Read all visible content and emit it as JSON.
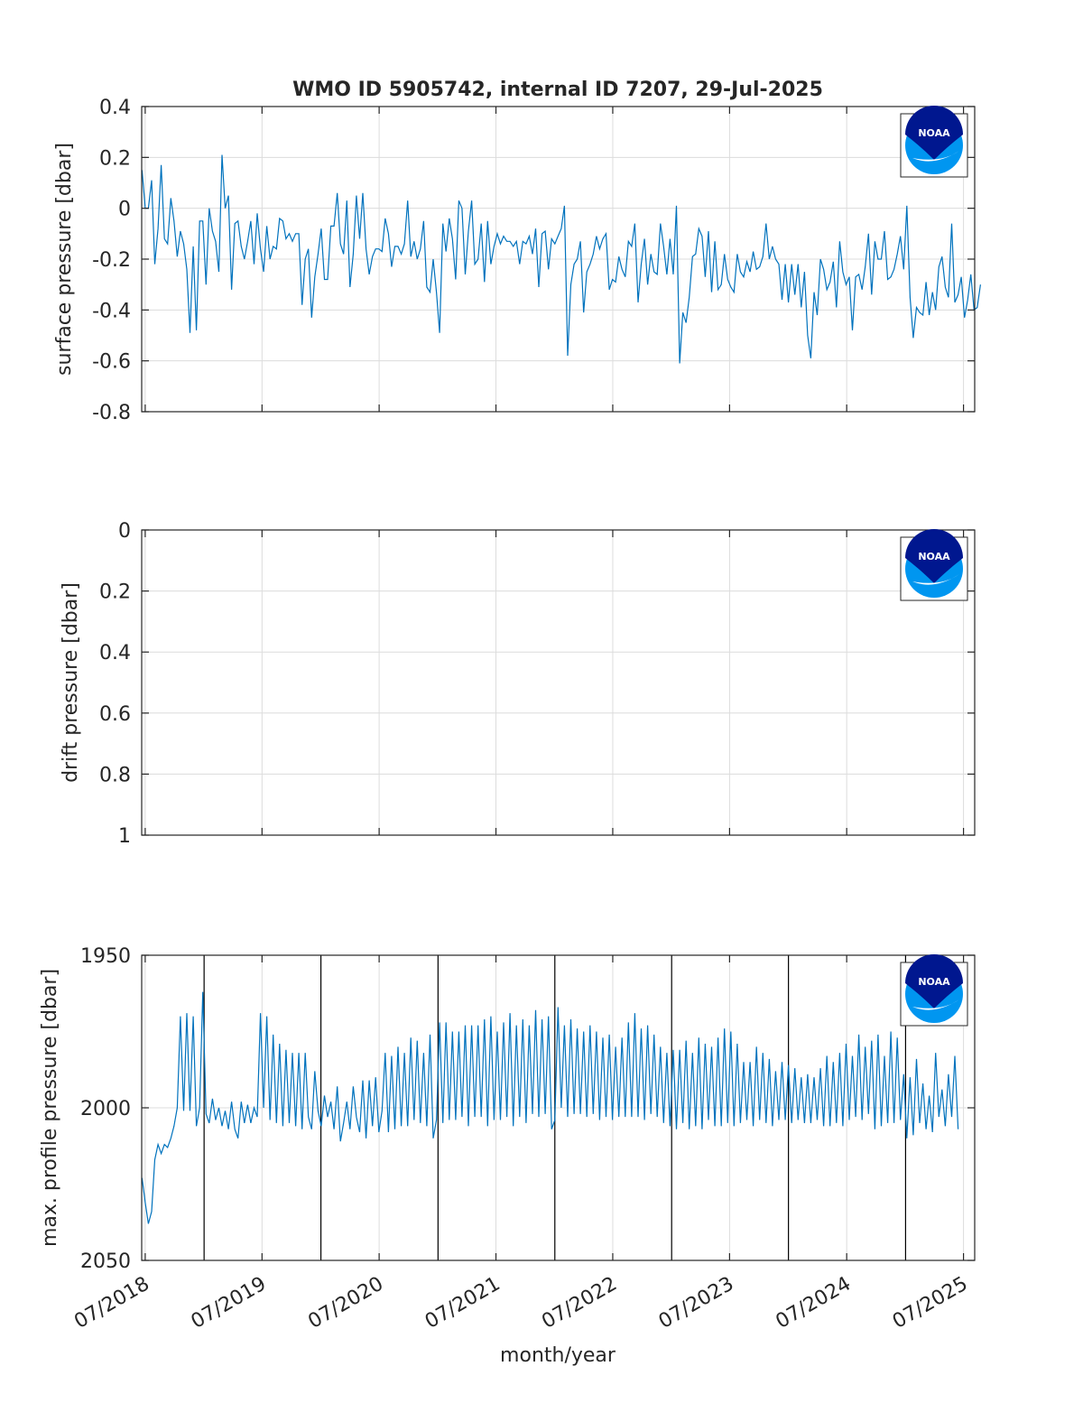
{
  "title": "WMO ID 5905742, internal ID 7207, 29-Jul-2025",
  "xlabel": "month/year",
  "x_tick_labels": [
    "07/2018",
    "07/2019",
    "07/2020",
    "07/2021",
    "07/2022",
    "07/2023",
    "07/2024",
    "07/2025"
  ],
  "logo": {
    "text": "NOAA",
    "dark_blue": "#00178f",
    "light_blue": "#0096f0"
  },
  "colors": {
    "series": "#0072bd",
    "grid": "#dcdcdc",
    "axes": "#262626"
  },
  "chart_data": [
    {
      "type": "line",
      "ylabel": "surface pressure [dbar]",
      "xlim": [
        "2018-06-20",
        "2025-08-05"
      ],
      "ylim": [
        -0.8,
        0.4
      ],
      "y_reversed": false,
      "y_ticks": [
        0.4,
        0.2,
        0,
        -0.2,
        -0.4,
        -0.6,
        -0.8
      ],
      "y_tick_labels": [
        "0.4",
        "0.2",
        "0",
        "-0.2",
        "-0.4",
        "-0.6",
        "-0.8"
      ],
      "grid": true,
      "series": [
        {
          "x_start": "2018-06-21",
          "x_step_days": 10,
          "values": [
            0.15,
            0.0,
            0.0,
            0.11,
            -0.22,
            -0.08,
            0.17,
            -0.12,
            -0.14,
            0.04,
            -0.05,
            -0.19,
            -0.09,
            -0.14,
            -0.24,
            -0.49,
            -0.15,
            -0.48,
            -0.05,
            -0.05,
            -0.3,
            0.0,
            -0.09,
            -0.13,
            -0.25,
            0.21,
            0.0,
            0.05,
            -0.32,
            -0.06,
            -0.05,
            -0.15,
            -0.2,
            -0.13,
            -0.05,
            -0.22,
            -0.02,
            -0.16,
            -0.25,
            -0.07,
            -0.2,
            -0.15,
            -0.16,
            -0.04,
            -0.05,
            -0.12,
            -0.1,
            -0.13,
            -0.1,
            -0.1,
            -0.38,
            -0.2,
            -0.16,
            -0.43,
            -0.27,
            -0.18,
            -0.08,
            -0.28,
            -0.28,
            -0.07,
            -0.07,
            0.06,
            -0.14,
            -0.18,
            0.03,
            -0.31,
            -0.18,
            0.05,
            -0.12,
            0.06,
            -0.16,
            -0.26,
            -0.19,
            -0.16,
            -0.16,
            -0.17,
            -0.04,
            -0.1,
            -0.23,
            -0.15,
            -0.15,
            -0.18,
            -0.14,
            0.03,
            -0.19,
            -0.13,
            -0.2,
            -0.16,
            -0.05,
            -0.31,
            -0.33,
            -0.2,
            -0.33,
            -0.49,
            -0.06,
            -0.17,
            -0.04,
            -0.12,
            -0.28,
            0.03,
            0.0,
            -0.26,
            -0.09,
            0.03,
            -0.22,
            -0.2,
            -0.06,
            -0.29,
            -0.05,
            -0.22,
            -0.15,
            -0.1,
            -0.14,
            -0.11,
            -0.13,
            -0.13,
            -0.15,
            -0.13,
            -0.22,
            -0.13,
            -0.14,
            -0.11,
            -0.18,
            -0.08,
            -0.31,
            -0.1,
            -0.09,
            -0.24,
            -0.12,
            -0.14,
            -0.11,
            -0.08,
            0.01,
            -0.58,
            -0.3,
            -0.22,
            -0.2,
            -0.13,
            -0.41,
            -0.25,
            -0.22,
            -0.18,
            -0.11,
            -0.16,
            -0.12,
            -0.1,
            -0.32,
            -0.28,
            -0.29,
            -0.19,
            -0.24,
            -0.27,
            -0.13,
            -0.15,
            -0.06,
            -0.37,
            -0.22,
            -0.12,
            -0.3,
            -0.18,
            -0.25,
            -0.26,
            -0.06,
            -0.15,
            -0.26,
            -0.12,
            -0.26,
            0.01,
            -0.61,
            -0.41,
            -0.45,
            -0.35,
            -0.19,
            -0.18,
            -0.08,
            -0.11,
            -0.27,
            -0.09,
            -0.33,
            -0.13,
            -0.32,
            -0.3,
            -0.18,
            -0.28,
            -0.31,
            -0.33,
            -0.18,
            -0.25,
            -0.27,
            -0.21,
            -0.25,
            -0.17,
            -0.24,
            -0.23,
            -0.19,
            -0.06,
            -0.2,
            -0.15,
            -0.2,
            -0.22,
            -0.36,
            -0.22,
            -0.37,
            -0.22,
            -0.34,
            -0.22,
            -0.39,
            -0.25,
            -0.5,
            -0.59,
            -0.33,
            -0.42,
            -0.2,
            -0.24,
            -0.32,
            -0.29,
            -0.21,
            -0.39,
            -0.13,
            -0.25,
            -0.3,
            -0.27,
            -0.48,
            -0.27,
            -0.26,
            -0.32,
            -0.23,
            -0.1,
            -0.34,
            -0.13,
            -0.2,
            -0.2,
            -0.09,
            -0.28,
            -0.27,
            -0.24,
            -0.18,
            -0.11,
            -0.24,
            0.01,
            -0.35,
            -0.51,
            -0.39,
            -0.41,
            -0.42,
            -0.29,
            -0.42,
            -0.33,
            -0.4,
            -0.23,
            -0.19,
            -0.31,
            -0.35,
            -0.06,
            -0.37,
            -0.34,
            -0.27,
            -0.43,
            -0.36,
            -0.26,
            -0.4,
            -0.39,
            -0.3
          ]
        }
      ],
      "logo_position": "top-right"
    },
    {
      "type": "line",
      "ylabel": "drift pressure [dbar]",
      "xlim": [
        "2018-06-20",
        "2025-08-05"
      ],
      "ylim": [
        0,
        1
      ],
      "y_reversed": true,
      "y_ticks": [
        0,
        0.2,
        0.4,
        0.6,
        0.8,
        1
      ],
      "y_tick_labels": [
        "0",
        "0.2",
        "0.4",
        "0.6",
        "0.8",
        "1"
      ],
      "grid": true,
      "series": [],
      "logo_position": "top-right"
    },
    {
      "type": "line",
      "ylabel": "max. profile pressure [dbar]",
      "xlim": [
        "2018-06-20",
        "2025-08-05"
      ],
      "ylim": [
        1950,
        2050
      ],
      "y_reversed": true,
      "y_ticks": [
        1950,
        2000,
        2050
      ],
      "y_tick_labels": [
        "1950",
        "2000",
        "2050"
      ],
      "grid": true,
      "vertical_lines_x": [
        "2019-01-01",
        "2020-01-01",
        "2021-01-01",
        "2022-01-01",
        "2023-01-01",
        "2024-01-01",
        "2025-01-01"
      ],
      "series": [
        {
          "x_start": "2018-06-21",
          "x_step_days": 10,
          "values": [
            2023,
            2031,
            2038,
            2034,
            2017,
            2012,
            2015,
            2012,
            2013,
            2010,
            2006,
            2000,
            1970,
            2001,
            1969,
            2001,
            1970,
            2006,
            2000,
            1962,
            2002,
            2005,
            1997,
            2004,
            2000,
            2006,
            2001,
            2007,
            1998,
            2007,
            2010,
            1998,
            2005,
            1999,
            2005,
            2000,
            2003,
            1969,
            2000,
            1970,
            2004,
            1976,
            2005,
            1979,
            2006,
            1981,
            2005,
            1982,
            2006,
            1982,
            2007,
            1982,
            2003,
            2007,
            1988,
            2001,
            2006,
            1996,
            2003,
            1998,
            2007,
            1993,
            2011,
            2005,
            1998,
            2007,
            1993,
            2003,
            2008,
            1991,
            2010,
            1991,
            2006,
            1990,
            2008,
            2001,
            1982,
            2008,
            1983,
            2007,
            1980,
            2006,
            1982,
            2006,
            1977,
            2004,
            1978,
            2005,
            1982,
            2006,
            1976,
            2010,
            2004,
            1972,
            2005,
            1972,
            2004,
            1975,
            2004,
            1975,
            2003,
            1973,
            2006,
            1973,
            2003,
            1973,
            2003,
            1971,
            2006,
            1970,
            2004,
            1975,
            2004,
            1972,
            2003,
            1969,
            2006,
            1973,
            2003,
            1971,
            2005,
            1973,
            2002,
            1968,
            2003,
            1971,
            2002,
            1970,
            2007,
            2004,
            1967,
            2000,
            1973,
            2003,
            1971,
            2002,
            1974,
            2002,
            1975,
            2003,
            1973,
            2002,
            1975,
            2004,
            1977,
            2003,
            1976,
            2004,
            1980,
            2003,
            1977,
            2003,
            1972,
            2003,
            1969,
            2003,
            1974,
            2004,
            1973,
            2002,
            1976,
            2003,
            1980,
            2005,
            1982,
            2006,
            1981,
            2007,
            1981,
            2005,
            1978,
            2007,
            1982,
            2006,
            1977,
            2007,
            1979,
            2004,
            1980,
            2006,
            1977,
            2006,
            1974,
            2005,
            1975,
            2006,
            1979,
            2005,
            1985,
            2004,
            1985,
            2006,
            1980,
            2004,
            1982,
            2005,
            1984,
            2006,
            1988,
            2004,
            1985,
            2004,
            1986,
            2005,
            1987,
            2004,
            1990,
            2005,
            1989,
            2005,
            1990,
            2004,
            1987,
            2006,
            1983,
            2006,
            1985,
            2005,
            1982,
            2006,
            1979,
            2004,
            1983,
            2003,
            1976,
            2004,
            1980,
            2002,
            1978,
            2007,
            1976,
            2006,
            1983,
            2005,
            1975,
            2005,
            1977,
            2004,
            1989,
            2010,
            1990,
            2009,
            1984,
            2005,
            1992,
            2007,
            1996,
            2008,
            1982,
            2003,
            1994,
            2006,
            1989,
            2003,
            1983,
            2007
          ]
        }
      ],
      "logo_position": "top-right"
    }
  ]
}
